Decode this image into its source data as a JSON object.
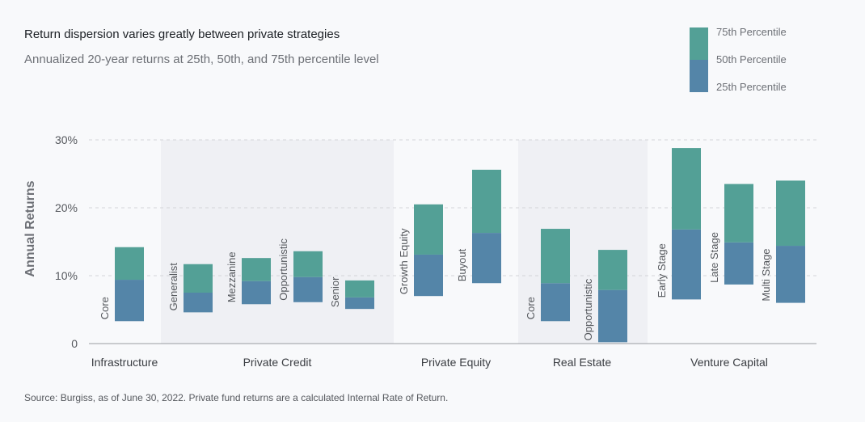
{
  "title": "Return dispersion varies greatly between private strategies",
  "subtitle": "Annualized 20-year returns at 25th, 50th, and 75th percentile level",
  "source": "Source:  Burgiss, as of June 30, 2022. Private fund returns are a calculated Internal Rate of Return.",
  "colors": {
    "upper": "#53a096",
    "lower": "#5485a8",
    "band": "#eff0f4"
  },
  "chart_data": {
    "type": "bar",
    "subtype": "floating-stacked-range",
    "ylabel": "Annual Returns",
    "ylim": [
      0,
      30
    ],
    "yticks": [
      {
        "v": 0,
        "label": "0"
      },
      {
        "v": 10,
        "label": "10%"
      },
      {
        "v": 20,
        "label": "20%"
      },
      {
        "v": 30,
        "label": "30%"
      }
    ],
    "grid": true,
    "legend": {
      "placement": "top-right",
      "entries": [
        "75th Percentile",
        "50th Percentile",
        "25th Percentile"
      ]
    },
    "groups": [
      {
        "name": "Infrastructure",
        "shaded": false,
        "bars": [
          {
            "label": "Core",
            "p25": 3.3,
            "p50": 9.4,
            "p75": 14.2
          }
        ]
      },
      {
        "name": "Private Credit",
        "shaded": true,
        "bars": [
          {
            "label": "Generalist",
            "p25": 4.6,
            "p50": 7.5,
            "p75": 11.7
          },
          {
            "label": "Mezzanine",
            "p25": 5.8,
            "p50": 9.2,
            "p75": 12.6
          },
          {
            "label": "Opportunistic",
            "p25": 6.1,
            "p50": 9.8,
            "p75": 13.6
          },
          {
            "label": "Senior",
            "p25": 5.1,
            "p50": 6.8,
            "p75": 9.3
          }
        ]
      },
      {
        "name": "Private Equity",
        "shaded": false,
        "bars": [
          {
            "label": "Growth Equity",
            "p25": 7.0,
            "p50": 13.1,
            "p75": 20.5
          },
          {
            "label": "Buyout",
            "p25": 8.9,
            "p50": 16.3,
            "p75": 25.6
          }
        ]
      },
      {
        "name": "Real Estate",
        "shaded": true,
        "bars": [
          {
            "label": "Core",
            "p25": 3.3,
            "p50": 8.9,
            "p75": 16.9
          },
          {
            "label": "Opportunistic",
            "p25": 0.2,
            "p50": 7.9,
            "p75": 13.8
          }
        ]
      },
      {
        "name": "Venture Capital",
        "shaded": false,
        "bars": [
          {
            "label": "Early Stage",
            "p25": 6.5,
            "p50": 16.8,
            "p75": 28.8
          },
          {
            "label": "Late Stage",
            "p25": 8.7,
            "p50": 14.9,
            "p75": 23.5
          },
          {
            "label": "Multi Stage",
            "p25": 6.0,
            "p50": 14.4,
            "p75": 24.0
          }
        ]
      }
    ]
  }
}
